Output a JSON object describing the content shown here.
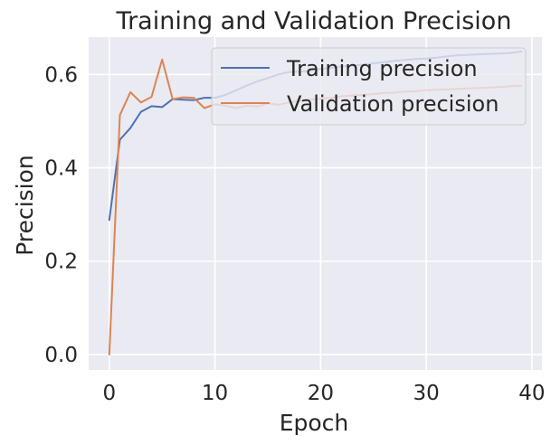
{
  "chart_data": {
    "type": "line",
    "title": "Training and Validation Precision",
    "xlabel": "Epoch",
    "ylabel": "Precision",
    "xlim": [
      -1.95,
      40.95
    ],
    "ylim": [
      -0.033,
      0.68
    ],
    "x_ticks": [
      0,
      10,
      20,
      30,
      40
    ],
    "y_ticks": [
      0.0,
      0.2,
      0.4,
      0.6
    ],
    "grid": true,
    "legend_position": "top-right",
    "x": [
      0,
      1,
      2,
      3,
      4,
      5,
      6,
      7,
      8,
      9,
      10,
      11,
      12,
      13,
      14,
      15,
      16,
      17,
      18,
      19,
      20,
      21,
      22,
      23,
      24,
      25,
      26,
      27,
      28,
      29,
      30,
      31,
      32,
      33,
      34,
      35,
      36,
      37,
      38,
      39
    ],
    "series": [
      {
        "name": "Training precision",
        "color": "#4c72b0",
        "values": [
          0.288,
          0.46,
          0.485,
          0.52,
          0.532,
          0.53,
          0.547,
          0.546,
          0.545,
          0.55,
          0.55,
          0.556,
          0.566,
          0.576,
          0.585,
          0.592,
          0.6,
          0.605,
          0.606,
          0.608,
          0.612,
          0.614,
          0.617,
          0.619,
          0.621,
          0.624,
          0.626,
          0.629,
          0.631,
          0.633,
          0.634,
          0.636,
          0.639,
          0.641,
          0.642,
          0.643,
          0.644,
          0.645,
          0.646,
          0.649
        ]
      },
      {
        "name": "Validation precision",
        "color": "#dd8452",
        "values": [
          0.0,
          0.513,
          0.562,
          0.54,
          0.552,
          0.632,
          0.547,
          0.551,
          0.55,
          0.528,
          0.536,
          0.533,
          0.528,
          0.533,
          0.531,
          0.538,
          0.535,
          0.54,
          0.543,
          0.546,
          0.548,
          0.55,
          0.553,
          0.555,
          0.556,
          0.558,
          0.56,
          0.561,
          0.563,
          0.564,
          0.566,
          0.567,
          0.568,
          0.569,
          0.57,
          0.571,
          0.572,
          0.573,
          0.575,
          0.576
        ]
      }
    ]
  }
}
